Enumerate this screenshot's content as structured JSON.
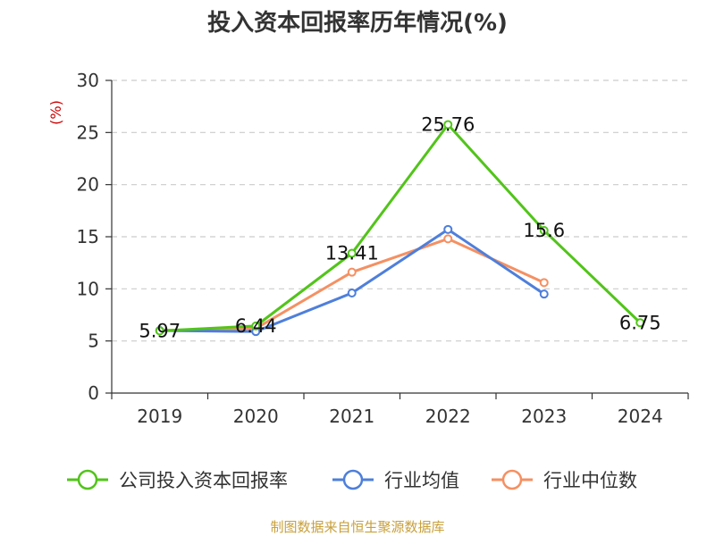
{
  "chart_data": {
    "type": "line",
    "title": "投入资本回报率历年情况(%)",
    "ylabel": "(%)",
    "xlabel": "",
    "categories": [
      "2019",
      "2020",
      "2021",
      "2022",
      "2023",
      "2024"
    ],
    "ylim": [
      0,
      30
    ],
    "yticks": [
      0,
      5,
      10,
      15,
      20,
      25,
      30
    ],
    "grid": true,
    "legend_position": "bottom",
    "series": [
      {
        "name": "公司投入资本回报率",
        "color": "#52c41a",
        "values": [
          5.97,
          6.44,
          13.41,
          25.76,
          15.6,
          6.75
        ],
        "data_labels": [
          "5.97",
          "6.44",
          "13.41",
          "25.76",
          "15.6",
          "6.75"
        ]
      },
      {
        "name": "行业均值",
        "color": "#4e7fdb",
        "values": [
          6.0,
          5.9,
          9.6,
          15.7,
          9.5,
          null
        ]
      },
      {
        "name": "行业中位数",
        "color": "#f59062",
        "values": [
          6.0,
          6.2,
          11.6,
          14.8,
          10.6,
          null
        ]
      }
    ]
  },
  "source": "制图数据来自恒生聚源数据库",
  "colors": {
    "unit": "#cc0000",
    "source": "#c8a03c",
    "grid": "#cccccc",
    "axis": "#333333"
  }
}
